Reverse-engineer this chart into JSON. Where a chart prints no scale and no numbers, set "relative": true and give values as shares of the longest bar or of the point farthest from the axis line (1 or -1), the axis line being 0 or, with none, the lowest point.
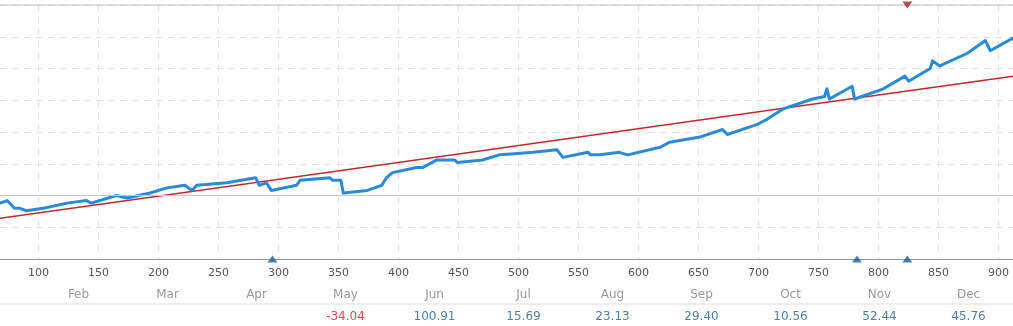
{
  "chart_data": [
    {
      "type": "line",
      "relative": true,
      "xlim": [
        68,
        912
      ],
      "xticks": [
        100,
        150,
        200,
        250,
        300,
        350,
        400,
        450,
        500,
        550,
        600,
        650,
        700,
        750,
        800,
        850,
        900
      ],
      "grid": true,
      "marker": "none",
      "line_style": "solid",
      "ref_lines": [
        {
          "axis": "y",
          "value": 0.25,
          "color": "#c8c8c8"
        }
      ],
      "series": [
        {
          "type": "line",
          "color": "#2a8ad8",
          "x": [
            68,
            74,
            80,
            84,
            90,
            104,
            124,
            140,
            144,
            165,
            174,
            193,
            207,
            222,
            228,
            232,
            257,
            281,
            284,
            290,
            294,
            315,
            318,
            343,
            345,
            352,
            354,
            374,
            386,
            390,
            395,
            415,
            420,
            432,
            447,
            449,
            470,
            484,
            512,
            532,
            537,
            558,
            560,
            568,
            584,
            591,
            618,
            626,
            651,
            670,
            674,
            699,
            707,
            720,
            726,
            745,
            755,
            757,
            759,
            778,
            780,
            804,
            822,
            825,
            843,
            845,
            851,
            874,
            889,
            893,
            912
          ],
          "values": [
            0.22,
            0.23,
            0.2,
            0.2,
            0.19,
            0.2,
            0.22,
            0.23,
            0.22,
            0.25,
            0.24,
            0.26,
            0.28,
            0.29,
            0.27,
            0.29,
            0.3,
            0.32,
            0.29,
            0.3,
            0.27,
            0.29,
            0.31,
            0.32,
            0.31,
            0.31,
            0.26,
            0.27,
            0.29,
            0.32,
            0.34,
            0.36,
            0.36,
            0.39,
            0.39,
            0.38,
            0.39,
            0.41,
            0.42,
            0.43,
            0.4,
            0.42,
            0.41,
            0.41,
            0.42,
            0.41,
            0.44,
            0.46,
            0.48,
            0.51,
            0.49,
            0.53,
            0.55,
            0.59,
            0.6,
            0.63,
            0.64,
            0.67,
            0.63,
            0.68,
            0.63,
            0.67,
            0.72,
            0.7,
            0.75,
            0.78,
            0.76,
            0.81,
            0.86,
            0.82,
            0.87
          ]
        },
        {
          "type": "line",
          "color": "#c0282d",
          "x": [
            68,
            912
          ],
          "values": [
            0.16,
            0.72
          ]
        },
        {
          "type": "scatter",
          "color": "#1f5f8f",
          "marker": "triangle",
          "x": [
            295,
            782,
            824
          ],
          "values": [
            0,
            0,
            0
          ]
        },
        {
          "type": "scatter",
          "color": "#a02828",
          "marker": "triangle-down",
          "x": [
            824
          ],
          "values": [
            1
          ]
        }
      ]
    },
    {
      "type": "other",
      "categories": [
        "Feb",
        "Mar",
        "Apr",
        "May",
        "Jun",
        "Jul",
        "Aug",
        "Sep",
        "Oct",
        "Nov",
        "Dec"
      ],
      "annotations": [
        {
          "text": "-34.04",
          "x": "May"
        },
        {
          "text": "100.91",
          "x": "Jun"
        },
        {
          "text": "15.69",
          "x": "Jul"
        },
        {
          "text": "23.13",
          "x": "Aug"
        },
        {
          "text": "29.40",
          "x": "Sep"
        },
        {
          "text": "10.56",
          "x": "Oct"
        },
        {
          "text": "52.44",
          "x": "Nov"
        },
        {
          "text": "45.76",
          "x": "Dec"
        }
      ],
      "colors": [
        null,
        null,
        null,
        "#c0282d",
        "#1f5f8f",
        "#1f5f8f",
        "#1f5f8f",
        "#1f5f8f",
        "#1f5f8f",
        "#1f5f8f",
        "#1f5f8f"
      ]
    }
  ]
}
